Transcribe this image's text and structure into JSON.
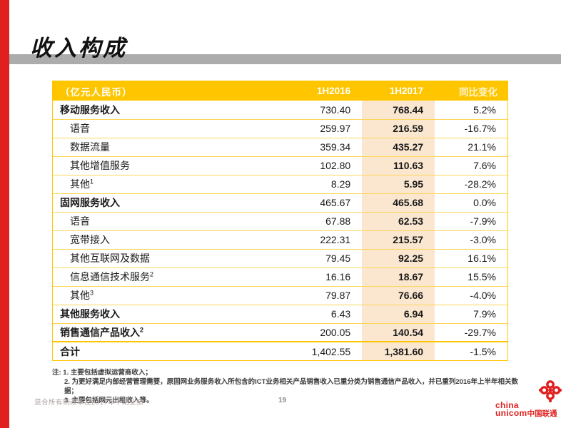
{
  "slide": {
    "title": "收入构成",
    "footer": {
      "deck_title": "混合所有制改革及2017年中期业绩",
      "page_number": "19"
    },
    "logo": {
      "icon": "unicom-knot-icon",
      "wordmark_line1": "china",
      "wordmark_line2": "unicom",
      "wordmark_cn": "中国联通"
    }
  },
  "table": {
    "unit_header": "（亿元人民币）",
    "columns": [
      "1H2016",
      "1H2017",
      "同比变化"
    ],
    "rows": [
      {
        "label": "移动服务收入",
        "sup": "",
        "indent": false,
        "bold": true,
        "total": false,
        "h2016": "730.40",
        "h2017": "768.44",
        "change": "5.2%"
      },
      {
        "label": "语音",
        "sup": "",
        "indent": true,
        "bold": false,
        "total": false,
        "h2016": "259.97",
        "h2017": "216.59",
        "change": "-16.7%"
      },
      {
        "label": "数据流量",
        "sup": "",
        "indent": true,
        "bold": false,
        "total": false,
        "h2016": "359.34",
        "h2017": "435.27",
        "change": "21.1%"
      },
      {
        "label": "其他增值服务",
        "sup": "",
        "indent": true,
        "bold": false,
        "total": false,
        "h2016": "102.80",
        "h2017": "110.63",
        "change": "7.6%"
      },
      {
        "label": "其他",
        "sup": "1",
        "indent": true,
        "bold": false,
        "total": false,
        "h2016": "8.29",
        "h2017": "5.95",
        "change": "-28.2%"
      },
      {
        "label": "固网服务收入",
        "sup": "",
        "indent": false,
        "bold": true,
        "total": false,
        "h2016": "465.67",
        "h2017": "465.68",
        "change": "0.0%"
      },
      {
        "label": "语音",
        "sup": "",
        "indent": true,
        "bold": false,
        "total": false,
        "h2016": "67.88",
        "h2017": "62.53",
        "change": "-7.9%"
      },
      {
        "label": "宽带接入",
        "sup": "",
        "indent": true,
        "bold": false,
        "total": false,
        "h2016": "222.31",
        "h2017": "215.57",
        "change": "-3.0%"
      },
      {
        "label": "其他互联网及数据",
        "sup": "",
        "indent": true,
        "bold": false,
        "total": false,
        "h2016": "79.45",
        "h2017": "92.25",
        "change": "16.1%"
      },
      {
        "label": "信息通信技术服务",
        "sup": "2",
        "indent": true,
        "bold": false,
        "total": false,
        "h2016": "16.16",
        "h2017": "18.67",
        "change": "15.5%"
      },
      {
        "label": "其他",
        "sup": "3",
        "indent": true,
        "bold": false,
        "total": false,
        "h2016": "79.87",
        "h2017": "76.66",
        "change": "-4.0%"
      },
      {
        "label": "其他服务收入",
        "sup": "",
        "indent": false,
        "bold": true,
        "total": false,
        "h2016": "6.43",
        "h2017": "6.94",
        "change": "7.9%"
      },
      {
        "label": "销售通信产品收入",
        "sup": "2",
        "indent": false,
        "bold": true,
        "total": false,
        "h2016": "200.05",
        "h2017": "140.54",
        "change": "-29.7%"
      },
      {
        "label": "合计",
        "sup": "",
        "indent": false,
        "bold": true,
        "total": true,
        "h2016": "1,402.55",
        "h2017": "1,381.60",
        "change": "-1.5%"
      }
    ]
  },
  "notes": [
    "注: 1. 主要包括虚拟运营商收入；",
    "2. 为更好满足内部经营管理需要，原固网业务服务收入所包含的ICT业务相关产品销售收入已重分类为销售通信产品收入，并已重列2016年上半年相关数据；",
    "3. 主要包括网元出租收入等。"
  ],
  "colors": {
    "brand_red": "#E0201F",
    "header_yellow": "#FFC600",
    "highlight_peach": "#FBE7D0",
    "title_bar_gray": "#ACACAC",
    "row_separator": "#FFD658"
  }
}
